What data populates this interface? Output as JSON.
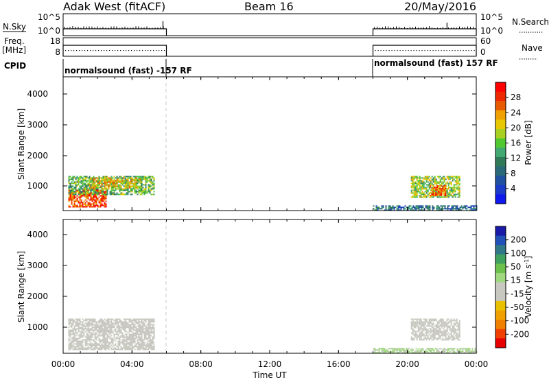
{
  "header": {
    "station": "Adak West (fitACF)",
    "beam": "Beam 16",
    "date": "20/May/2016"
  },
  "top_panels": {
    "nsky": {
      "label": "N.Sky",
      "ticks": [
        "10^5",
        "10^0"
      ],
      "right_label": "N.Search",
      "right_ticks": [
        "10^5",
        "10^0"
      ]
    },
    "freq": {
      "label": "Freq.",
      "unit": "[MHz]",
      "ticks": [
        "18",
        "8"
      ],
      "right_label": "Nave",
      "right_ticks": [
        "60",
        "0"
      ]
    },
    "cpid": {
      "label": "CPID",
      "segments": [
        {
          "text": "normalsound (fast) -157 RF",
          "start_hour": 0,
          "end_hour": 6
        },
        {
          "text": "normalsound (fast) 157 RF",
          "start_hour": 18,
          "end_hour": 24
        }
      ]
    }
  },
  "x_axis": {
    "label": "Time UT",
    "ticks": [
      "00:00",
      "04:00",
      "08:00",
      "12:00",
      "16:00",
      "20:00",
      "00:00"
    ],
    "tick_hours": [
      0,
      4,
      8,
      12,
      16,
      20,
      24
    ],
    "range_hours": [
      0,
      24
    ]
  },
  "power_panel": {
    "ylabel": "Slant Range [km]",
    "yticks": [
      "4000",
      "3000",
      "2000",
      "1000"
    ],
    "colorbar": {
      "label": "Power [dB]",
      "ticks": [
        "28",
        "24",
        "20",
        "16",
        "12",
        "8",
        "4"
      ],
      "colors": [
        "#ff0000",
        "#ee2800",
        "#e85a00",
        "#f0a000",
        "#e8c800",
        "#a8d020",
        "#50c830",
        "#40a870",
        "#307a5a",
        "#2a6a78",
        "#2050a0",
        "#1a3cc8",
        "#1018f0"
      ]
    }
  },
  "velocity_panel": {
    "ylabel": "Slant Range [km]",
    "yticks": [
      "4000",
      "3000",
      "2000",
      "1000"
    ],
    "colorbar": {
      "label": "Velocity [m s",
      "label_sup": "-1",
      "label_end": "]",
      "ticks": [
        "200",
        "100",
        "50",
        "15",
        "-15",
        "-50",
        "-100",
        "-200"
      ],
      "colors": [
        "#1a1aa8",
        "#2050b8",
        "#307888",
        "#40a060",
        "#6cc04c",
        "#a0d880",
        "#c8c8c0",
        "#c8c8c0",
        "#e8c000",
        "#f0a000",
        "#f08000",
        "#f04000",
        "#e80000"
      ]
    }
  },
  "chart_data": {
    "type": "heatmap",
    "title": "Adak West (fitACF) Beam 16 20/May/2016",
    "xlabel": "Time UT",
    "ylabel": "Slant Range [km]",
    "xlim_hours": [
      0,
      24
    ],
    "ylim_km": [
      180,
      4500
    ],
    "data_gap_hours": [
      6,
      18
    ],
    "power_regions": [
      {
        "t_start": 0.3,
        "t_end": 2.5,
        "range_km": [
          300,
          900
        ],
        "power_db": 26
      },
      {
        "t_start": 0.3,
        "t_end": 5.3,
        "range_km": [
          700,
          1300
        ],
        "power_db": 14
      },
      {
        "t_start": 1.5,
        "t_end": 4.5,
        "range_km": [
          900,
          1250
        ],
        "power_db": 20
      },
      {
        "t_start": 20.2,
        "t_end": 23.0,
        "range_km": [
          600,
          1300
        ],
        "power_db": 16
      },
      {
        "t_start": 21.3,
        "t_end": 22.2,
        "range_km": [
          650,
          1000
        ],
        "power_db": 26
      },
      {
        "t_start": 18.0,
        "t_end": 24.0,
        "range_km": [
          180,
          350
        ],
        "power_db": 8
      }
    ],
    "velocity_regions": [
      {
        "t_start": 0.3,
        "t_end": 5.3,
        "range_km": [
          300,
          1300
        ],
        "velocity_ms": 0
      },
      {
        "t_start": 20.2,
        "t_end": 23.0,
        "range_km": [
          600,
          1300
        ],
        "velocity_ms": 0
      },
      {
        "t_start": 18.0,
        "t_end": 24.0,
        "range_km": [
          180,
          350
        ],
        "velocity_ms": 20
      }
    ]
  }
}
